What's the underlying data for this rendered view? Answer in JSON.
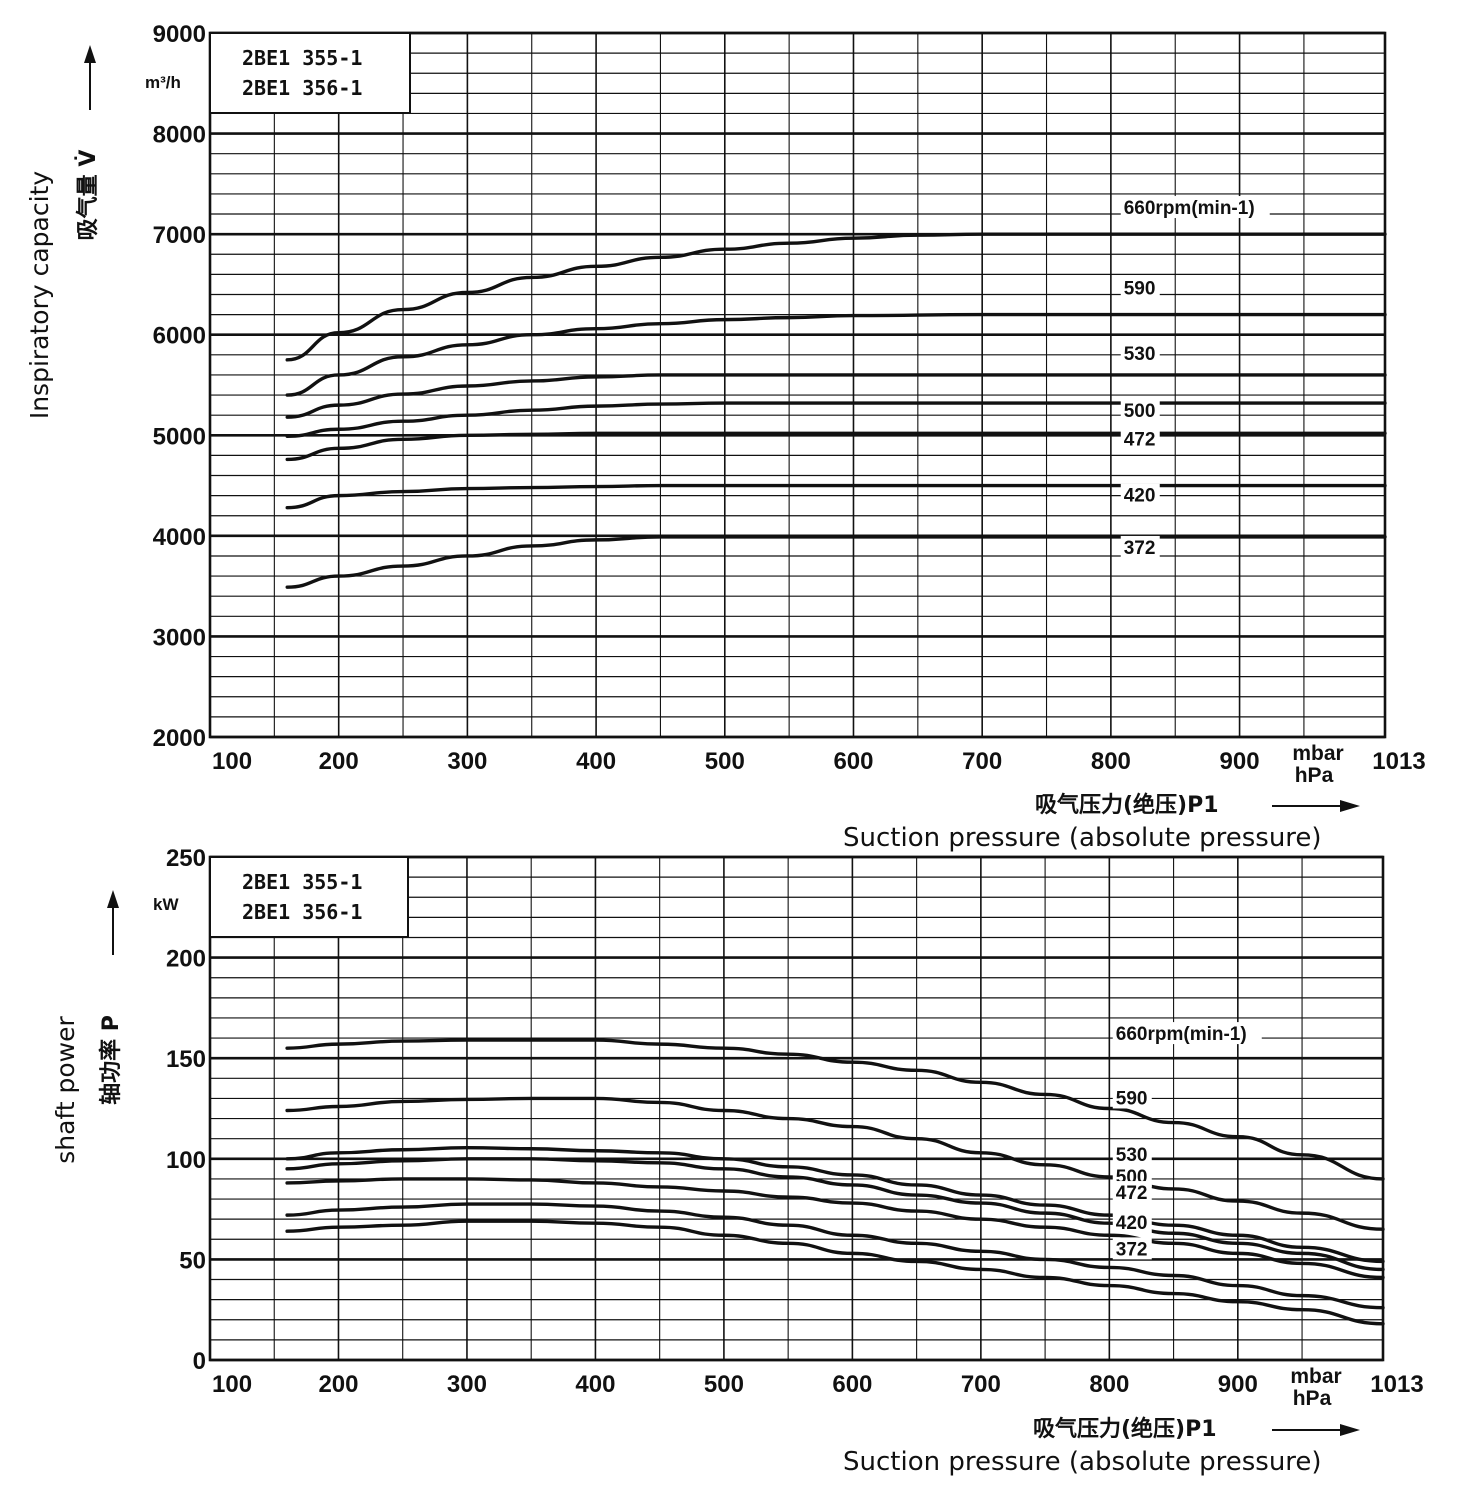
{
  "chart_data": [
    {
      "type": "line",
      "model_box": [
        "2BE1 355-1",
        "2BE1 356-1"
      ],
      "y_unit": "m³/h",
      "ylabel_cn": "吸气量",
      "ylabel_symbol": "V̇",
      "ylabel_en": "Inspiratory capacity",
      "xlabel_cn": "吸气压力(绝压)P1",
      "xlabel_en": "Suction pressure (absolute pressure)",
      "x_unit": [
        "mbar",
        "hPa"
      ],
      "xlim": [
        100,
        1013
      ],
      "ylim": [
        2000,
        9000
      ],
      "x_ticks": [
        100,
        200,
        300,
        400,
        500,
        600,
        700,
        800,
        900,
        1013
      ],
      "y_ticks": [
        2000,
        3000,
        4000,
        5000,
        6000,
        7000,
        8000,
        9000
      ],
      "x_grid": [
        100,
        150,
        200,
        250,
        300,
        350,
        400,
        450,
        500,
        550,
        600,
        650,
        700,
        750,
        800,
        850,
        900,
        950,
        1013
      ],
      "grid": true,
      "series": [
        {
          "name": "660rpm(min-1)",
          "x": [
            160,
            200,
            250,
            300,
            350,
            400,
            450,
            500,
            550,
            600,
            650,
            700,
            800,
            900,
            1013
          ],
          "values": [
            5750,
            6020,
            6250,
            6420,
            6570,
            6680,
            6770,
            6850,
            6910,
            6960,
            6990,
            7000,
            7000,
            7000,
            7000
          ]
        },
        {
          "name": "590",
          "x": [
            160,
            200,
            250,
            300,
            350,
            400,
            450,
            500,
            550,
            600,
            700,
            800,
            900,
            1013
          ],
          "values": [
            5400,
            5600,
            5780,
            5900,
            6000,
            6060,
            6110,
            6150,
            6170,
            6190,
            6200,
            6200,
            6200,
            6200
          ]
        },
        {
          "name": "530",
          "x": [
            160,
            200,
            250,
            300,
            350,
            400,
            450,
            500,
            600,
            800,
            1013
          ],
          "values": [
            5180,
            5300,
            5410,
            5490,
            5540,
            5580,
            5600,
            5600,
            5600,
            5600,
            5600
          ]
        },
        {
          "name": "500",
          "x": [
            160,
            200,
            250,
            300,
            350,
            400,
            450,
            500,
            600,
            800,
            1013
          ],
          "values": [
            4990,
            5060,
            5140,
            5200,
            5250,
            5290,
            5310,
            5320,
            5320,
            5320,
            5320
          ]
        },
        {
          "name": "472",
          "x": [
            160,
            200,
            250,
            300,
            350,
            400,
            500,
            600,
            800,
            1013
          ],
          "values": [
            4760,
            4870,
            4960,
            5000,
            5010,
            5020,
            5020,
            5020,
            5020,
            5020
          ]
        },
        {
          "name": "420",
          "x": [
            160,
            200,
            250,
            300,
            350,
            400,
            450,
            500,
            600,
            800,
            1013
          ],
          "values": [
            4280,
            4400,
            4440,
            4470,
            4480,
            4490,
            4500,
            4500,
            4500,
            4500,
            4500
          ]
        },
        {
          "name": "372",
          "x": [
            160,
            200,
            250,
            300,
            350,
            400,
            450,
            500,
            600,
            800,
            1013
          ],
          "values": [
            3490,
            3600,
            3700,
            3800,
            3900,
            3960,
            3990,
            3990,
            3990,
            3990,
            3990
          ]
        }
      ],
      "label_x": [
        810,
        810,
        810,
        810,
        810,
        810,
        810
      ],
      "label_y": [
        7200,
        6400,
        5750,
        5180,
        4900,
        4340,
        3820
      ]
    },
    {
      "type": "line",
      "model_box": [
        "2BE1 355-1",
        "2BE1 356-1"
      ],
      "y_unit": "kW",
      "ylabel_cn": "轴功率",
      "ylabel_symbol": "P",
      "ylabel_en": "shaft power",
      "xlabel_cn": "吸气压力(绝压)P1",
      "xlabel_en": "Suction pressure (absolute pressure)",
      "x_unit": [
        "mbar",
        "hPa"
      ],
      "xlim": [
        100,
        1013
      ],
      "ylim": [
        0,
        250
      ],
      "x_ticks": [
        100,
        200,
        300,
        400,
        500,
        600,
        700,
        800,
        900,
        1013
      ],
      "y_ticks": [
        0,
        50,
        100,
        150,
        200,
        250
      ],
      "x_grid": [
        100,
        150,
        200,
        250,
        300,
        350,
        400,
        450,
        500,
        550,
        600,
        650,
        700,
        750,
        800,
        850,
        900,
        950,
        1013
      ],
      "grid": true,
      "series": [
        {
          "name": "660rpm(min-1)",
          "x": [
            160,
            200,
            250,
            300,
            350,
            400,
            450,
            500,
            550,
            600,
            650,
            700,
            750,
            800,
            850,
            900,
            950,
            1013
          ],
          "values": [
            155,
            157,
            158.5,
            159,
            159,
            159,
            157,
            155,
            152,
            148,
            144,
            138,
            132,
            125,
            118,
            111,
            102,
            90
          ]
        },
        {
          "name": "590",
          "x": [
            160,
            200,
            250,
            300,
            350,
            400,
            450,
            500,
            550,
            600,
            650,
            700,
            750,
            800,
            850,
            900,
            950,
            1013
          ],
          "values": [
            124,
            126,
            128.5,
            129.5,
            130,
            130,
            128,
            124,
            120,
            116,
            110,
            103,
            97,
            91,
            85,
            79,
            73,
            65
          ]
        },
        {
          "name": "530",
          "x": [
            160,
            200,
            250,
            300,
            350,
            400,
            450,
            500,
            550,
            600,
            650,
            700,
            750,
            800,
            850,
            900,
            950,
            1013
          ],
          "values": [
            100,
            103,
            104.5,
            105.5,
            105,
            104,
            103,
            100,
            96,
            92,
            87,
            82,
            77,
            72,
            67,
            62,
            56,
            49
          ]
        },
        {
          "name": "500",
          "x": [
            160,
            200,
            250,
            300,
            350,
            400,
            450,
            500,
            550,
            600,
            650,
            700,
            750,
            800,
            850,
            900,
            950,
            1013
          ],
          "values": [
            95,
            97.5,
            99,
            100,
            100,
            99,
            98,
            95,
            91,
            87,
            82,
            78,
            73,
            68,
            63,
            58,
            53,
            45
          ]
        },
        {
          "name": "472",
          "x": [
            160,
            200,
            250,
            300,
            350,
            400,
            450,
            500,
            550,
            600,
            650,
            700,
            750,
            800,
            850,
            900,
            950,
            1013
          ],
          "values": [
            88,
            89,
            90,
            90,
            89.5,
            88,
            86,
            84,
            81,
            78,
            74,
            70,
            66,
            62,
            58,
            53,
            48,
            41
          ]
        },
        {
          "name": "420",
          "x": [
            160,
            200,
            250,
            300,
            350,
            400,
            450,
            500,
            550,
            600,
            650,
            700,
            750,
            800,
            850,
            900,
            950,
            1013
          ],
          "values": [
            72,
            74.5,
            76,
            77.5,
            77.5,
            76.5,
            74,
            71,
            67,
            62,
            58,
            54,
            50,
            46,
            42,
            37,
            32,
            26
          ]
        },
        {
          "name": "372",
          "x": [
            160,
            200,
            250,
            300,
            350,
            400,
            450,
            500,
            550,
            600,
            650,
            700,
            750,
            800,
            850,
            900,
            950,
            1013
          ],
          "values": [
            64,
            66,
            67,
            69,
            69,
            68,
            66,
            62,
            58,
            53,
            49,
            45,
            41,
            37,
            33,
            29,
            25,
            18
          ]
        }
      ],
      "label_x": [
        805,
        805,
        805,
        805,
        805,
        805,
        805
      ],
      "label_y": [
        159,
        127,
        99,
        88,
        80,
        65,
        52
      ]
    }
  ]
}
